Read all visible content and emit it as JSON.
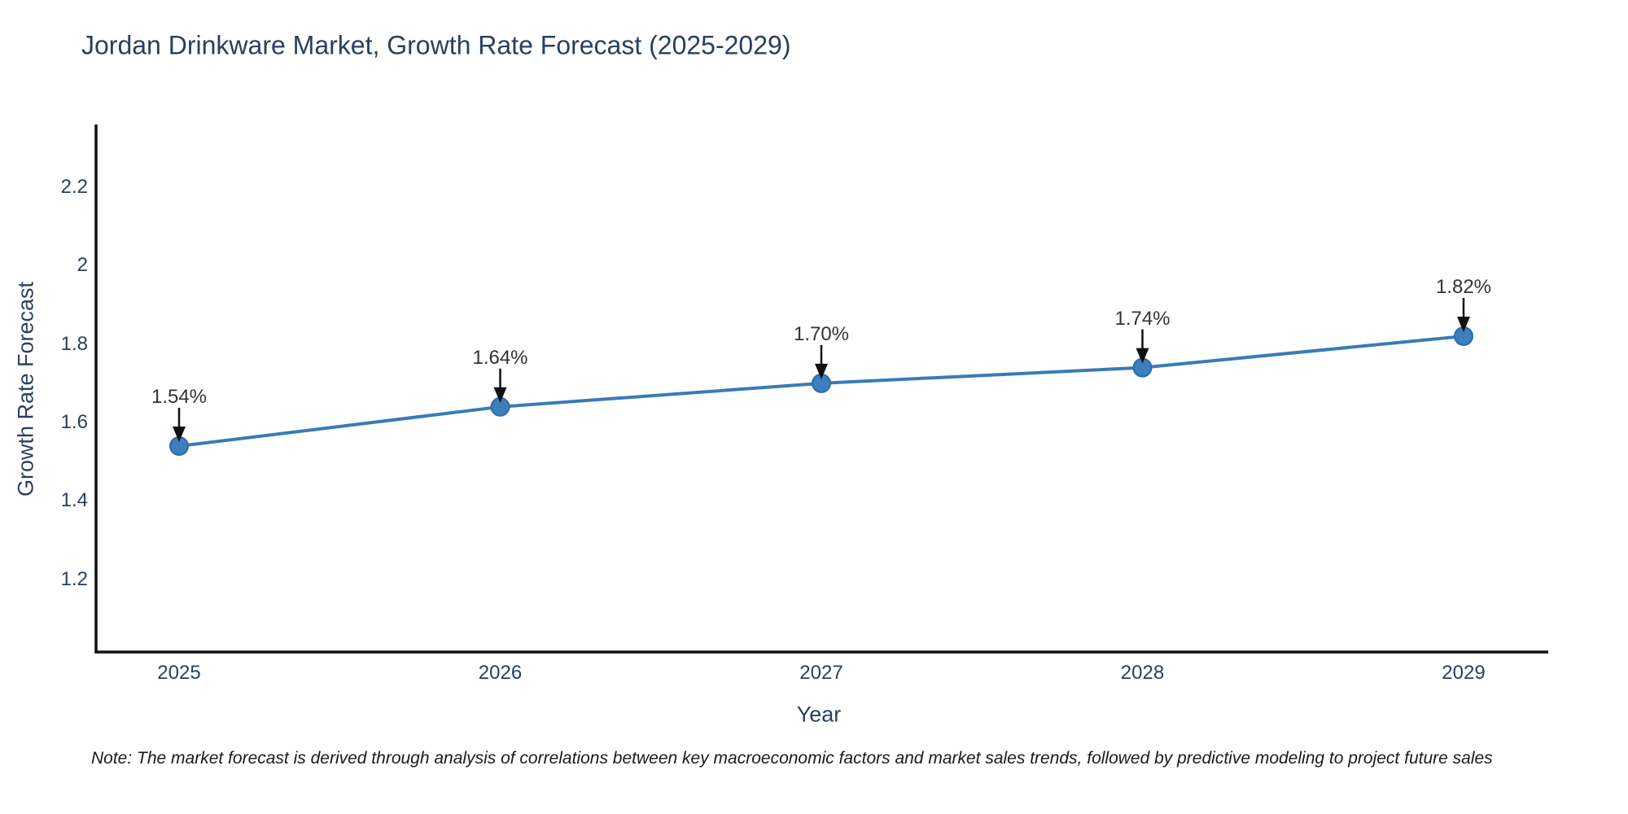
{
  "title": "Jordan Drinkware Market, Growth Rate Forecast (2025-2029)",
  "note": "Note: The market forecast is derived through analysis of correlations between key macroeconomic factors and market sales trends, followed by predictive modeling to project future sales",
  "chart_data": {
    "type": "line",
    "title": "Jordan Drinkware Market, Growth Rate Forecast (2025-2029)",
    "xlabel": "Year",
    "ylabel": "Growth Rate Forecast",
    "x": [
      2025,
      2026,
      2027,
      2028,
      2029
    ],
    "y": [
      1.54,
      1.64,
      1.7,
      1.74,
      1.82
    ],
    "point_labels": [
      "1.54%",
      "1.64%",
      "1.70%",
      "1.74%",
      "1.82%"
    ],
    "x_tick_labels": [
      "2025",
      "2026",
      "2027",
      "2028",
      "2029"
    ],
    "y_tick_values": [
      2.2,
      2.0,
      1.8,
      1.6,
      1.4,
      1.2
    ],
    "y_tick_labels": [
      "2.2",
      "2",
      "1.8",
      "1.6",
      "1.4",
      "1.2"
    ],
    "ylim": [
      1.02,
      2.36
    ],
    "grid": false,
    "legend": false,
    "markers": true,
    "annotations_with_arrows": true,
    "colors": {
      "line": "#3a7ab8",
      "marker_fill": "#3d7ebc",
      "marker_edge": "#2e6ca8",
      "axis_spine": "#111111",
      "tick_label": "#2a3f5f",
      "annotation_text": "#333333",
      "arrow": "#111111",
      "background": "#ffffff"
    }
  }
}
